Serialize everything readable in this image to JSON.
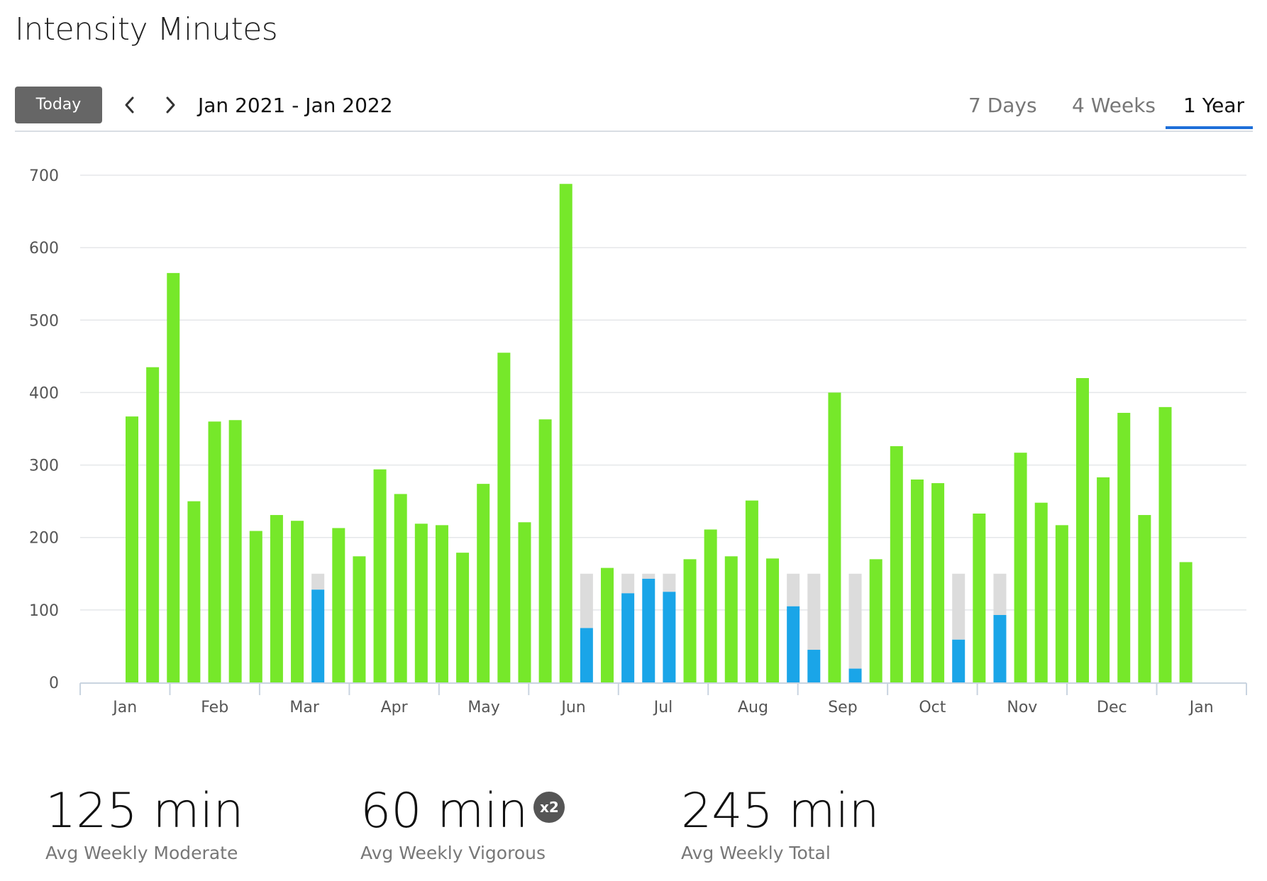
{
  "title": "Intensity Minutes",
  "toolbar": {
    "today_label": "Today",
    "range_label": "Jan 2021 - Jan 2022",
    "tabs": [
      "7 Days",
      "4 Weeks",
      "1 Year"
    ],
    "active_tab": "1 Year"
  },
  "stats": {
    "moderate": {
      "value": "125 min",
      "label": "Avg Weekly Moderate"
    },
    "vigorous": {
      "value": "60 min",
      "badge": "x2",
      "label": "Avg Weekly Vigorous"
    },
    "total": {
      "value": "245 min",
      "label": "Avg Weekly Total"
    }
  },
  "colors": {
    "goal_met": "#76e82a",
    "below_goal": "#1aa5e8",
    "goal_remaining": "#dcdcdc",
    "accent": "#1e6fd9"
  },
  "chart_data": {
    "type": "bar",
    "title": "",
    "xlabel": "",
    "ylabel": "",
    "ylim": [
      0,
      700
    ],
    "yticks": [
      0,
      100,
      200,
      300,
      400,
      500,
      600,
      700
    ],
    "month_labels": [
      "Jan",
      "Feb",
      "Mar",
      "Apr",
      "May",
      "Jun",
      "Jul",
      "Aug",
      "Sep",
      "Oct",
      "Nov",
      "Dec",
      "Jan"
    ],
    "weekly_goal": 150,
    "grid": true,
    "weeks": [
      367,
      435,
      565,
      250,
      360,
      362,
      209,
      231,
      223,
      128,
      213,
      174,
      294,
      260,
      219,
      217,
      179,
      274,
      455,
      221,
      363,
      688,
      75,
      158,
      123,
      143,
      125,
      170,
      211,
      174,
      251,
      171,
      105,
      45,
      400,
      19,
      170,
      326,
      280,
      275,
      59,
      233,
      93,
      317,
      248,
      217,
      420,
      283,
      372,
      231,
      380,
      166
    ]
  }
}
